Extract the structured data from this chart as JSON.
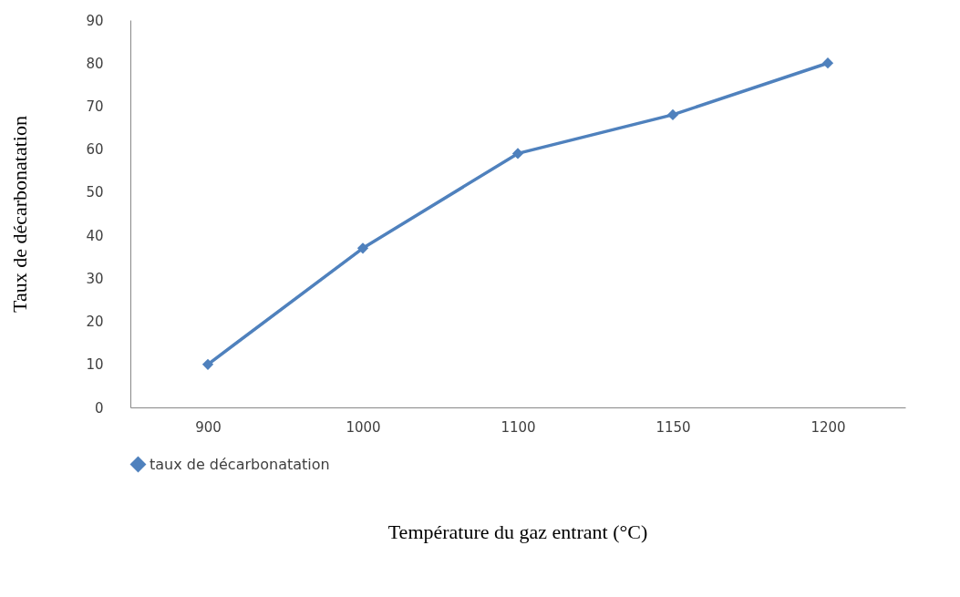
{
  "chart_data": {
    "type": "line",
    "xlabel": "Température du gaz entrant (°C)",
    "ylabel": "Taux de décarbonatation",
    "categories": [
      "900",
      "1000",
      "1100",
      "1150",
      "1200"
    ],
    "series": [
      {
        "name": "taux de décarbonatation",
        "color": "#4f81bd",
        "values": [
          10,
          37,
          59,
          68,
          80
        ]
      }
    ],
    "ylim": [
      0,
      90
    ],
    "yticks": [
      0,
      10,
      20,
      30,
      40,
      50,
      60,
      70,
      80,
      90
    ],
    "grid": false,
    "legend": "bottom",
    "marker": "diamond",
    "line_style": "solid"
  }
}
